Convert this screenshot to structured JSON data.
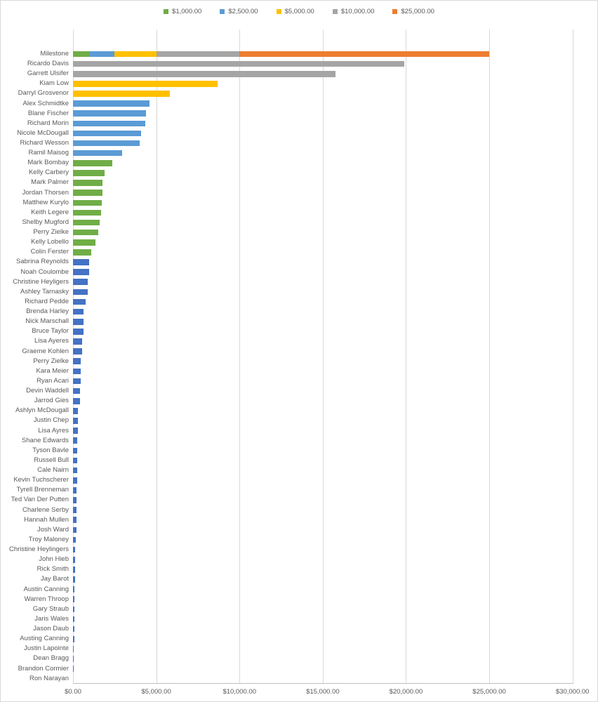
{
  "colors": {
    "green": "#70AD47",
    "light_blue": "#5B9BD5",
    "yellow": "#FFC000",
    "gray": "#A5A5A5",
    "orange": "#ED7D31",
    "navy": "#4472C4",
    "gridline": "#D9D9D9",
    "axis_line": "#BFBFBF",
    "text": "#595959"
  },
  "chart_data": {
    "type": "bar",
    "orientation": "horizontal",
    "title": "",
    "xlabel": "",
    "ylabel": "",
    "xlim": [
      0,
      30000
    ],
    "grid": true,
    "legend_position": "top",
    "x_ticks": [
      {
        "value": 0,
        "label": "$0.00"
      },
      {
        "value": 5000,
        "label": "$5,000.00"
      },
      {
        "value": 10000,
        "label": "$10,000.00"
      },
      {
        "value": 15000,
        "label": "$15,000.00"
      },
      {
        "value": 20000,
        "label": "$20,000.00"
      },
      {
        "value": 25000,
        "label": "$25,000.00"
      },
      {
        "value": 30000,
        "label": "$30,000.00"
      }
    ],
    "legend": [
      {
        "label": "$1,000.00",
        "color_key": "green"
      },
      {
        "label": "$2,500.00",
        "color_key": "light_blue"
      },
      {
        "label": "$5,000.00",
        "color_key": "yellow"
      },
      {
        "label": "$10,000.00",
        "color_key": "gray"
      },
      {
        "label": "$25,000.00",
        "color_key": "orange"
      }
    ],
    "rows": [
      {
        "name": "Milestone",
        "type": "stacked",
        "segments": [
          {
            "value": 1000,
            "color_key": "green"
          },
          {
            "value": 1500,
            "color_key": "light_blue"
          },
          {
            "value": 2500,
            "color_key": "yellow"
          },
          {
            "value": 5000,
            "color_key": "gray"
          },
          {
            "value": 15000,
            "color_key": "orange"
          }
        ]
      },
      {
        "name": "Ricardo Davis",
        "value": 19900,
        "color_key": "gray"
      },
      {
        "name": "Garrett Ulsifer",
        "value": 15750,
        "color_key": "gray"
      },
      {
        "name": "Kiam Low",
        "value": 8700,
        "color_key": "yellow"
      },
      {
        "name": "Darryl Grosvenor",
        "value": 5820,
        "color_key": "yellow"
      },
      {
        "name": "Alex Schmidtke",
        "value": 4600,
        "color_key": "light_blue"
      },
      {
        "name": "Blane Fischer",
        "value": 4370,
        "color_key": "light_blue"
      },
      {
        "name": "Richard Morin",
        "value": 4350,
        "color_key": "light_blue"
      },
      {
        "name": "Nicole McDougall",
        "value": 4100,
        "color_key": "light_blue"
      },
      {
        "name": "Richard Wesson",
        "value": 3990,
        "color_key": "light_blue"
      },
      {
        "name": "Ramil Maisog",
        "value": 2950,
        "color_key": "light_blue"
      },
      {
        "name": "Mark Bombay",
        "value": 2350,
        "color_key": "green"
      },
      {
        "name": "Kelly Carbery",
        "value": 1910,
        "color_key": "green"
      },
      {
        "name": "Mark Palmer",
        "value": 1760,
        "color_key": "green"
      },
      {
        "name": "Jordan Thorsen",
        "value": 1755,
        "color_key": "green"
      },
      {
        "name": "Matthew Kurylo",
        "value": 1730,
        "color_key": "green"
      },
      {
        "name": "Keith Legere",
        "value": 1670,
        "color_key": "green"
      },
      {
        "name": "Shelby Mugford",
        "value": 1610,
        "color_key": "green"
      },
      {
        "name": "Perry Zielke",
        "value": 1520,
        "color_key": "green"
      },
      {
        "name": "Kelly Lobello",
        "value": 1340,
        "color_key": "green"
      },
      {
        "name": "Colin Ferster",
        "value": 1110,
        "color_key": "green"
      },
      {
        "name": "Sabrina Reynolds",
        "value": 980,
        "color_key": "navy"
      },
      {
        "name": "Noah Coulombe",
        "value": 970,
        "color_key": "navy"
      },
      {
        "name": "Christine Heyligers",
        "value": 885,
        "color_key": "navy"
      },
      {
        "name": "Ashley Tarnasky",
        "value": 880,
        "color_key": "navy"
      },
      {
        "name": "Richard Pedde",
        "value": 770,
        "color_key": "navy"
      },
      {
        "name": "Brenda Harley",
        "value": 625,
        "color_key": "navy"
      },
      {
        "name": "Nick Marschall",
        "value": 620,
        "color_key": "navy"
      },
      {
        "name": "Bruce Taylor",
        "value": 615,
        "color_key": "navy"
      },
      {
        "name": "Lisa Ayeres",
        "value": 535,
        "color_key": "navy"
      },
      {
        "name": "Graeme Kohlen",
        "value": 530,
        "color_key": "navy"
      },
      {
        "name": "Perry Zielke",
        "value": 465,
        "color_key": "navy"
      },
      {
        "name": "Kara Meier",
        "value": 450,
        "color_key": "navy"
      },
      {
        "name": "Ryan Acari",
        "value": 445,
        "color_key": "navy"
      },
      {
        "name": "Devin Waddell",
        "value": 440,
        "color_key": "navy"
      },
      {
        "name": "Jarrod Gies",
        "value": 420,
        "color_key": "navy"
      },
      {
        "name": "Ashlyn McDougall",
        "value": 310,
        "color_key": "navy"
      },
      {
        "name": "Justin Chep",
        "value": 280,
        "color_key": "navy"
      },
      {
        "name": "Lisa Ayres",
        "value": 275,
        "color_key": "navy"
      },
      {
        "name": "Shane Edwards",
        "value": 265,
        "color_key": "navy"
      },
      {
        "name": "Tyson Bavle",
        "value": 255,
        "color_key": "navy"
      },
      {
        "name": "Russell Bull",
        "value": 250,
        "color_key": "navy"
      },
      {
        "name": "Cale Nairn",
        "value": 245,
        "color_key": "navy"
      },
      {
        "name": "Kevin Tuchscherer",
        "value": 235,
        "color_key": "navy"
      },
      {
        "name": "Tyrell Brenneman",
        "value": 230,
        "color_key": "navy"
      },
      {
        "name": "Ted Van Der Putten",
        "value": 215,
        "color_key": "navy"
      },
      {
        "name": "Charlene Serby",
        "value": 210,
        "color_key": "navy"
      },
      {
        "name": "Hannah Mullen",
        "value": 205,
        "color_key": "navy"
      },
      {
        "name": "Josh Ward",
        "value": 190,
        "color_key": "navy"
      },
      {
        "name": "Troy Maloney",
        "value": 160,
        "color_key": "navy"
      },
      {
        "name": "Christine Heylingers",
        "value": 140,
        "color_key": "navy"
      },
      {
        "name": "John Hieb",
        "value": 130,
        "color_key": "navy"
      },
      {
        "name": "Rick Smith",
        "value": 125,
        "color_key": "navy"
      },
      {
        "name": "Jay Barot",
        "value": 110,
        "color_key": "navy"
      },
      {
        "name": "Austin Canning",
        "value": 105,
        "color_key": "navy"
      },
      {
        "name": "Warren Throop",
        "value": 100,
        "color_key": "navy"
      },
      {
        "name": "Gary Straub",
        "value": 95,
        "color_key": "navy"
      },
      {
        "name": "Jaris Wales",
        "value": 90,
        "color_key": "navy"
      },
      {
        "name": "Jason Daub",
        "value": 85,
        "color_key": "navy"
      },
      {
        "name": "Austing Canning",
        "value": 80,
        "color_key": "navy"
      },
      {
        "name": "Justin Lapointe",
        "value": 50,
        "color_key": "navy"
      },
      {
        "name": "Dean Bragg",
        "value": 45,
        "color_key": "navy"
      },
      {
        "name": "Brandon Cormier",
        "value": 40,
        "color_key": "navy"
      },
      {
        "name": "Ron Narayan",
        "value": 0,
        "color_key": "navy"
      }
    ]
  }
}
